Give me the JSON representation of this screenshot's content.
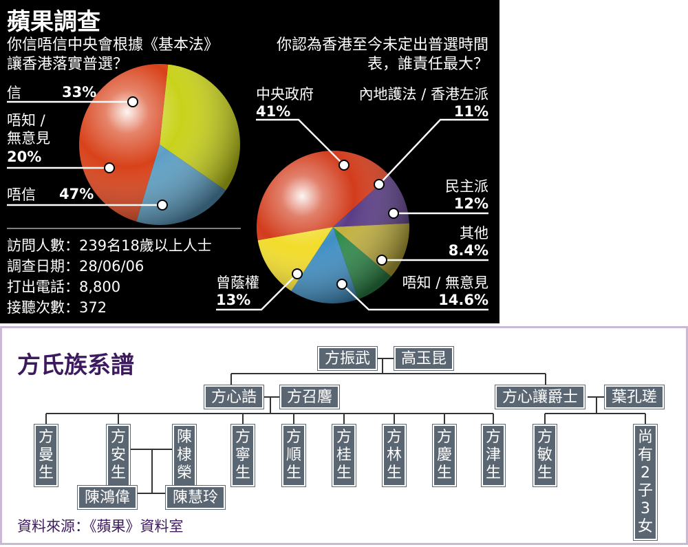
{
  "survey": {
    "title": "蘋果調查",
    "left_question_lines": [
      "你信唔信中央會根據《基本法》",
      "讓香港落實普選？"
    ],
    "right_question_lines": [
      "你認為香港至今未定出普選時間",
      "表，誰責任最大？"
    ],
    "stats": [
      "訪問人數：239名18歲以上人士",
      "調查日期：28/06/06",
      "打出電話：8,800",
      "接聽次數：372"
    ]
  },
  "chart_data": [
    {
      "type": "pie",
      "title": "你信唔信中央會根據《基本法》讓香港落實普選？",
      "labels": [
        "信",
        "唔知 / 無意見",
        "唔信"
      ],
      "label_lines": [
        [
          "信"
        ],
        [
          "唔知 /",
          "無意見"
        ],
        [
          "唔信"
        ]
      ],
      "value_labels": [
        "33%",
        "20%",
        "47%"
      ],
      "values": [
        33,
        20,
        47
      ],
      "colors": [
        "#c9d21a",
        "#5d9fc4",
        "#d8421a"
      ]
    },
    {
      "type": "pie",
      "title": "你認為香港至今未定出普選時間表，誰責任最大？",
      "labels": [
        "中央政府",
        "內地護法 / 香港左派",
        "民主派",
        "其他",
        "唔知 / 無意見",
        "曾蔭權"
      ],
      "value_labels": [
        "41%",
        "11%",
        "12%",
        "8.4%",
        "14.6%",
        "13%"
      ],
      "values": [
        41,
        11,
        12,
        8.4,
        14.6,
        13
      ],
      "colors": [
        "#d23c1c",
        "#5a3d86",
        "#c2b13e",
        "#2e8a4a",
        "#3f8fc4",
        "#f2dc2a"
      ]
    }
  ],
  "family": {
    "title": "方氏族系譜",
    "source": "資料來源：《蘋果》資料室",
    "members": {
      "patriarch": "方振武",
      "patriarch_wife": "高玉昆",
      "son1": "方心誥",
      "son1_wife": "方召麐",
      "son2": "方心讓爵士",
      "son2_wife": "葉孔瑳",
      "c1": "方曼生",
      "c2": "方安生",
      "c2_husband": "陳棣榮",
      "gc1": "陳鴻偉",
      "gc2": "陳慧玲",
      "c3": "方寧生",
      "c4": "方順生",
      "c5": "方桂生",
      "c6": "方林生",
      "c7": "方慶生",
      "c8": "方津生",
      "c9": "方敏生",
      "c10": "尚有2子3女"
    }
  }
}
